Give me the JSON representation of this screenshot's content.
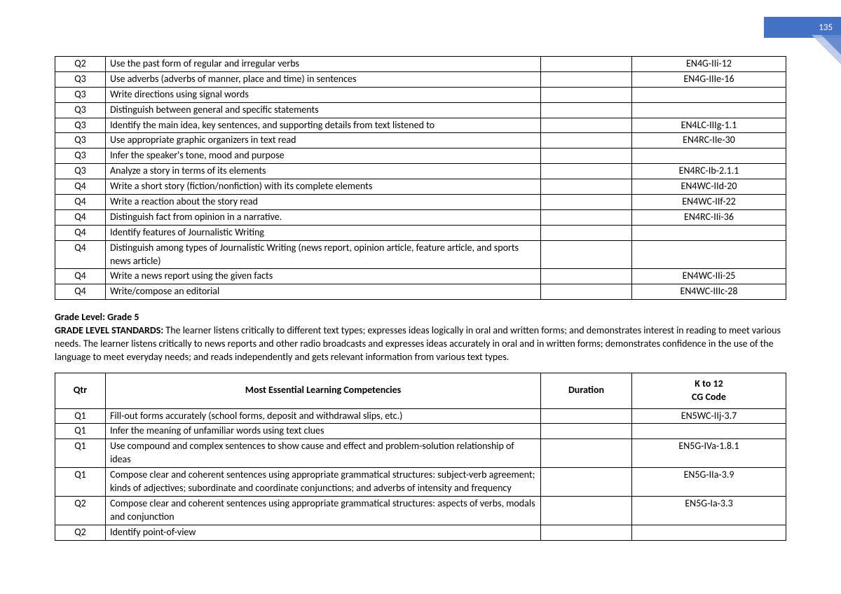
{
  "page_number": "135",
  "table1_rows": [
    {
      "qtr": "Q2",
      "comp": "Use the past form of regular and irregular verbs",
      "dur": "",
      "code": "EN4G-IIi-12"
    },
    {
      "qtr": "Q3",
      "comp": "Use adverbs (adverbs of manner, place and time) in sentences",
      "dur": "",
      "code": "EN4G-IIIe-16"
    },
    {
      "qtr": "Q3",
      "comp": "Write directions using signal words",
      "dur": "",
      "code": ""
    },
    {
      "qtr": "Q3",
      "comp": "Distinguish between general and specific statements",
      "dur": "",
      "code": ""
    },
    {
      "qtr": "Q3",
      "comp": "Identify the main idea, key sentences, and supporting details from text listened to",
      "dur": "",
      "code": "EN4LC-IIIg-1.1"
    },
    {
      "qtr": "Q3",
      "comp": "Use appropriate graphic organizers in text read",
      "dur": "",
      "code": "EN4RC-IIe-30"
    },
    {
      "qtr": "Q3",
      "comp": "Infer the speaker's tone, mood and purpose",
      "dur": "",
      "code": ""
    },
    {
      "qtr": "Q3",
      "comp": "Analyze a story in terms of its elements",
      "dur": "",
      "code": "EN4RC-Ib-2.1.1"
    },
    {
      "qtr": "Q4",
      "comp": "Write a short story (fiction/nonfiction) with its complete elements",
      "dur": "",
      "code": "EN4WC-IId-20"
    },
    {
      "qtr": "Q4",
      "comp": "Write a reaction about the story read",
      "dur": "",
      "code": "EN4WC-IIf-22"
    },
    {
      "qtr": "Q4",
      "comp": "Distinguish fact from opinion in a narrative.",
      "dur": "",
      "code": "EN4RC-IIi-36"
    },
    {
      "qtr": "Q4",
      "comp": "Identify features of Journalistic Writing",
      "dur": "",
      "code": ""
    },
    {
      "qtr": "Q4",
      "comp": "Distinguish among types of Journalistic Writing (news report, opinion article, feature article, and sports news article)",
      "dur": "",
      "code": ""
    },
    {
      "qtr": "Q4",
      "comp": "Write a news report using the given facts",
      "dur": "",
      "code": "EN4WC-IIi-25"
    },
    {
      "qtr": "Q4",
      "comp": "Write/compose an editorial",
      "dur": "",
      "code": "EN4WC-IIIc-28"
    }
  ],
  "section": {
    "grade_label": "Grade Level: Grade 5",
    "standards_label": "GRADE LEVEL STANDARDS: ",
    "standards_text": "The learner listens critically to different text types; expresses ideas logically in oral and written forms; and demonstrates interest in reading to meet various needs. The learner listens critically to news reports and other radio broadcasts and expresses ideas accurately in oral and in written forms; demonstrates confidence in the use of the language to meet everyday needs; and reads independently and gets relevant information from various text types."
  },
  "table2_headers": {
    "qtr": "Qtr",
    "comp": "Most Essential Learning Competencies",
    "dur": "Duration",
    "code": "K to 12\nCG Code"
  },
  "table2_rows": [
    {
      "qtr": "Q1",
      "comp": "Fill-out forms accurately (school forms, deposit and withdrawal slips, etc.)",
      "dur": "",
      "code": "EN5WC-IIj-3.7"
    },
    {
      "qtr": "Q1",
      "comp": "Infer the meaning of unfamiliar words using text clues",
      "dur": "",
      "code": ""
    },
    {
      "qtr": "Q1",
      "comp": "Use compound and complex sentences to show cause and effect and problem-solution relationship of ideas",
      "dur": "",
      "code": "EN5G-IVa-1.8.1"
    },
    {
      "qtr": "Q1",
      "comp": "Compose clear and coherent sentences using appropriate grammatical structures: subject-verb agreement; kinds of adjectives; subordinate and coordinate conjunctions; and adverbs of intensity and frequency",
      "dur": "",
      "code": "EN5G-IIa-3.9"
    },
    {
      "qtr": "Q2",
      "comp": "Compose clear and coherent sentences using appropriate grammatical structures: aspects of verbs, modals and conjunction",
      "dur": "",
      "code": "EN5G-Ia-3.3"
    },
    {
      "qtr": "Q2",
      "comp": "Identify point-of-view",
      "dur": "",
      "code": ""
    }
  ],
  "colors": {
    "banner_bg": "#4472c4",
    "banner_text": "#ffffff",
    "corner_light": "#b4c6e7",
    "border": "#000000",
    "text": "#000000"
  }
}
